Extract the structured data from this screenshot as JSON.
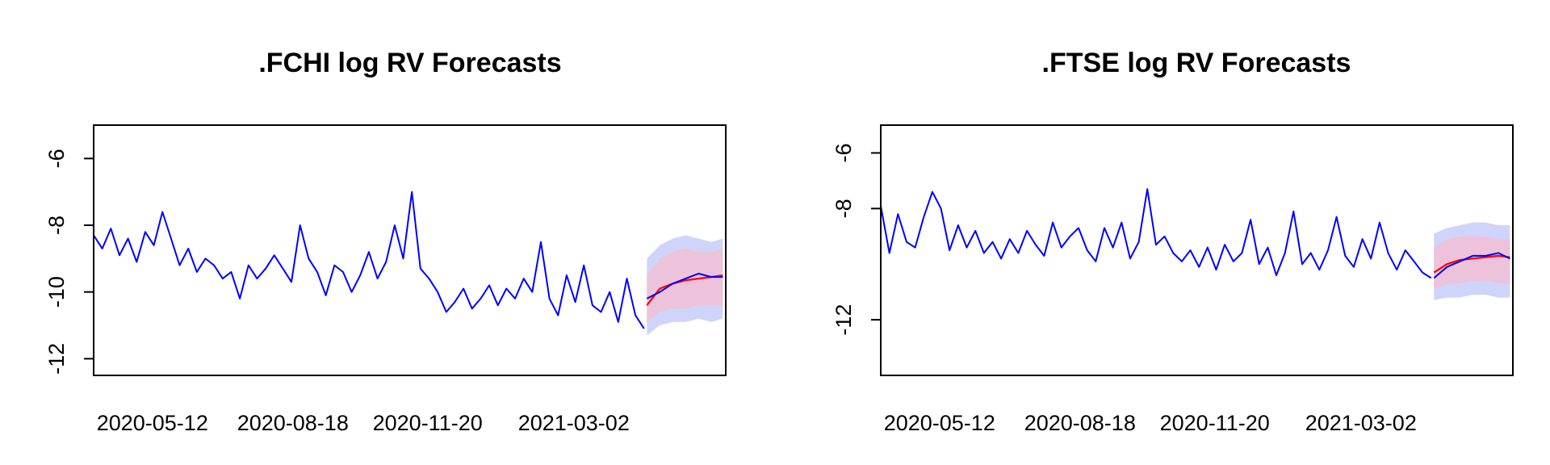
{
  "colors": {
    "history": "#0000ff",
    "forecast_mean": "#ff0000",
    "forecast_realized": "#0000ff",
    "band_outer": "#cfd5fa",
    "band_inner": "#ecc3da",
    "axis": "#000000"
  },
  "chart_data": [
    {
      "type": "line",
      "title": ".FCHI log RV Forecasts",
      "xlabel": "",
      "ylabel": "",
      "x_range": [
        "2020-04-01",
        "2021-06-16"
      ],
      "ylim": [
        -12.5,
        -5
      ],
      "y_ticks": [
        -6,
        -8,
        -10,
        -12
      ],
      "x_ticks": [
        "2020-05-12",
        "2020-08-18",
        "2020-11-20",
        "2021-03-02"
      ],
      "grid": false,
      "history": {
        "x": [
          "2020-04-01",
          "2020-04-07",
          "2020-04-13",
          "2020-04-19",
          "2020-04-25",
          "2020-05-01",
          "2020-05-07",
          "2020-05-13",
          "2020-05-19",
          "2020-05-25",
          "2020-05-31",
          "2020-06-06",
          "2020-06-12",
          "2020-06-18",
          "2020-06-24",
          "2020-06-30",
          "2020-07-06",
          "2020-07-12",
          "2020-07-18",
          "2020-07-24",
          "2020-07-30",
          "2020-08-05",
          "2020-08-11",
          "2020-08-17",
          "2020-08-23",
          "2020-08-29",
          "2020-09-04",
          "2020-09-10",
          "2020-09-16",
          "2020-09-22",
          "2020-09-28",
          "2020-10-04",
          "2020-10-10",
          "2020-10-16",
          "2020-10-22",
          "2020-10-28",
          "2020-11-03",
          "2020-11-09",
          "2020-11-15",
          "2020-11-21",
          "2020-11-27",
          "2020-12-03",
          "2020-12-09",
          "2020-12-15",
          "2020-12-21",
          "2020-12-27",
          "2021-01-02",
          "2021-01-08",
          "2021-01-14",
          "2021-01-20",
          "2021-01-26",
          "2021-02-01",
          "2021-02-07",
          "2021-02-13",
          "2021-02-19",
          "2021-02-25",
          "2021-03-03",
          "2021-03-09",
          "2021-03-15",
          "2021-03-21",
          "2021-03-27",
          "2021-04-02",
          "2021-04-08",
          "2021-04-14",
          "2021-04-20"
        ],
        "values": [
          -8.3,
          -8.7,
          -8.1,
          -8.9,
          -8.4,
          -9.1,
          -8.2,
          -8.6,
          -7.6,
          -8.4,
          -9.2,
          -8.7,
          -9.4,
          -9.0,
          -9.2,
          -9.6,
          -9.4,
          -10.2,
          -9.2,
          -9.6,
          -9.3,
          -8.9,
          -9.3,
          -9.7,
          -8.0,
          -9.0,
          -9.4,
          -10.1,
          -9.2,
          -9.4,
          -10.0,
          -9.5,
          -8.8,
          -9.6,
          -9.1,
          -8.0,
          -9.0,
          -7.0,
          -9.3,
          -9.6,
          -10.0,
          -10.6,
          -10.3,
          -9.9,
          -10.5,
          -10.2,
          -9.8,
          -10.4,
          -9.9,
          -10.2,
          -9.6,
          -10.0,
          -8.5,
          -10.2,
          -10.7,
          -9.5,
          -10.3,
          -9.2,
          -10.4,
          -10.6,
          -10.0,
          -10.9,
          -9.6,
          -10.7,
          -11.1
        ]
      },
      "forecast": {
        "x": [
          "2021-04-22",
          "2021-05-01",
          "2021-05-10",
          "2021-05-19",
          "2021-05-28",
          "2021-06-06",
          "2021-06-14"
        ],
        "mean": [
          -10.4,
          -9.9,
          -9.75,
          -9.65,
          -9.6,
          -9.55,
          -9.5
        ],
        "realized": [
          -10.2,
          -10.0,
          -9.75,
          -9.6,
          -9.45,
          -9.55,
          -9.55
        ],
        "upper_outer": [
          -9.0,
          -8.6,
          -8.4,
          -8.3,
          -8.4,
          -8.5,
          -8.4
        ],
        "lower_outer": [
          -11.3,
          -11.0,
          -10.9,
          -10.9,
          -10.8,
          -10.9,
          -10.8
        ],
        "upper_inner": [
          -9.5,
          -9.0,
          -8.8,
          -8.7,
          -8.8,
          -8.8,
          -8.7
        ],
        "lower_inner": [
          -10.9,
          -10.6,
          -10.5,
          -10.5,
          -10.4,
          -10.4,
          -10.4
        ]
      }
    },
    {
      "type": "line",
      "title": ".FTSE log RV Forecasts",
      "xlabel": "",
      "ylabel": "",
      "x_range": [
        "2020-04-01",
        "2021-06-16"
      ],
      "ylim": [
        -14,
        -5
      ],
      "y_ticks": [
        -6,
        -8,
        -12
      ],
      "x_ticks": [
        "2020-05-12",
        "2020-08-18",
        "2020-11-20",
        "2021-03-02"
      ],
      "grid": false,
      "history": {
        "x": [
          "2020-04-01",
          "2020-04-07",
          "2020-04-13",
          "2020-04-19",
          "2020-04-25",
          "2020-05-01",
          "2020-05-07",
          "2020-05-13",
          "2020-05-19",
          "2020-05-25",
          "2020-05-31",
          "2020-06-06",
          "2020-06-12",
          "2020-06-18",
          "2020-06-24",
          "2020-06-30",
          "2020-07-06",
          "2020-07-12",
          "2020-07-18",
          "2020-07-24",
          "2020-07-30",
          "2020-08-05",
          "2020-08-11",
          "2020-08-17",
          "2020-08-23",
          "2020-08-29",
          "2020-09-04",
          "2020-09-10",
          "2020-09-16",
          "2020-09-22",
          "2020-09-28",
          "2020-10-04",
          "2020-10-10",
          "2020-10-16",
          "2020-10-22",
          "2020-10-28",
          "2020-11-03",
          "2020-11-09",
          "2020-11-15",
          "2020-11-21",
          "2020-11-27",
          "2020-12-03",
          "2020-12-09",
          "2020-12-15",
          "2020-12-21",
          "2020-12-27",
          "2021-01-02",
          "2021-01-08",
          "2021-01-14",
          "2021-01-20",
          "2021-01-26",
          "2021-02-01",
          "2021-02-07",
          "2021-02-13",
          "2021-02-19",
          "2021-02-25",
          "2021-03-03",
          "2021-03-09",
          "2021-03-15",
          "2021-03-21",
          "2021-03-27",
          "2021-04-02",
          "2021-04-08",
          "2021-04-14",
          "2021-04-20"
        ],
        "values": [
          -7.9,
          -9.6,
          -8.2,
          -9.2,
          -9.4,
          -8.3,
          -7.4,
          -8.0,
          -9.5,
          -8.6,
          -9.4,
          -8.8,
          -9.6,
          -9.2,
          -9.8,
          -9.1,
          -9.6,
          -8.8,
          -9.3,
          -9.7,
          -8.5,
          -9.4,
          -9.0,
          -8.7,
          -9.5,
          -9.9,
          -8.7,
          -9.4,
          -8.5,
          -9.8,
          -9.2,
          -7.3,
          -9.3,
          -9.0,
          -9.6,
          -9.9,
          -9.5,
          -10.1,
          -9.4,
          -10.2,
          -9.3,
          -9.9,
          -9.6,
          -8.4,
          -10.0,
          -9.4,
          -10.4,
          -9.6,
          -8.1,
          -10.0,
          -9.6,
          -10.2,
          -9.5,
          -8.3,
          -9.7,
          -10.1,
          -9.1,
          -9.8,
          -8.5,
          -9.6,
          -10.2,
          -9.5,
          -9.9,
          -10.3,
          -10.5
        ]
      },
      "forecast": {
        "x": [
          "2021-04-22",
          "2021-05-01",
          "2021-05-10",
          "2021-05-19",
          "2021-05-28",
          "2021-06-06",
          "2021-06-14"
        ],
        "mean": [
          -10.3,
          -10.0,
          -9.85,
          -9.8,
          -9.75,
          -9.7,
          -9.75
        ],
        "realized": [
          -10.5,
          -10.1,
          -9.9,
          -9.7,
          -9.7,
          -9.6,
          -9.8
        ],
        "upper_outer": [
          -8.9,
          -8.7,
          -8.6,
          -8.5,
          -8.5,
          -8.6,
          -8.6
        ],
        "lower_outer": [
          -11.3,
          -11.2,
          -11.2,
          -11.1,
          -11.1,
          -11.2,
          -11.2
        ],
        "upper_inner": [
          -9.4,
          -9.1,
          -9.0,
          -9.0,
          -9.0,
          -9.1,
          -9.1
        ],
        "lower_inner": [
          -10.9,
          -10.7,
          -10.7,
          -10.6,
          -10.6,
          -10.7,
          -10.7
        ]
      }
    }
  ]
}
